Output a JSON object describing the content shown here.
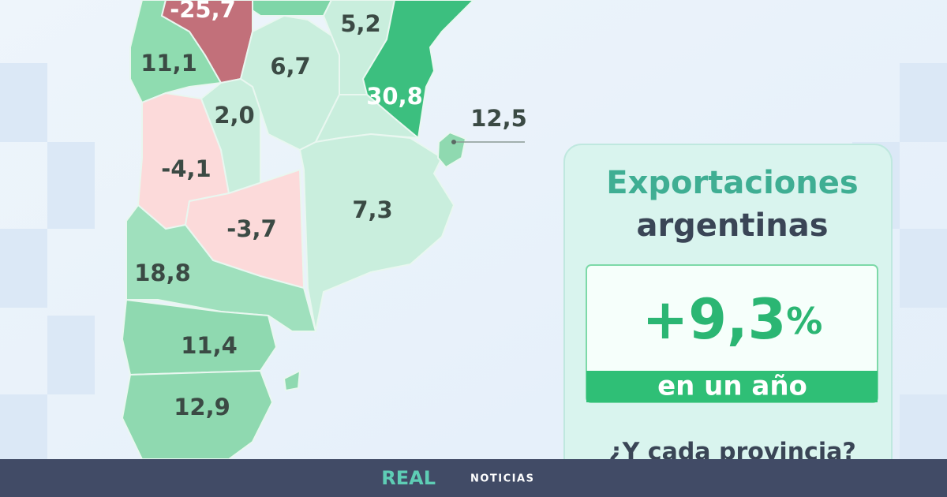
{
  "map": {
    "regions": [
      {
        "label": "-25,7"
      },
      {
        "label": "5,2"
      },
      {
        "label": "11,1"
      },
      {
        "label": "6,7"
      },
      {
        "label": "30,8"
      },
      {
        "label": "2,0"
      },
      {
        "label": "12,5"
      },
      {
        "label": "-4,1"
      },
      {
        "label": "7,3"
      },
      {
        "label": "-3,7"
      },
      {
        "label": "18,8"
      },
      {
        "label": "11,4"
      },
      {
        "label": "12,9"
      }
    ]
  },
  "panel": {
    "title_line1": "Exportaciones",
    "title_line2": "argentinas",
    "headline": "+9,3",
    "headline_unit": "%",
    "subline": "en un año",
    "question": "¿Y cada provincia?"
  },
  "footer": {
    "brand": "REAL",
    "section": "NOTICIAS"
  }
}
